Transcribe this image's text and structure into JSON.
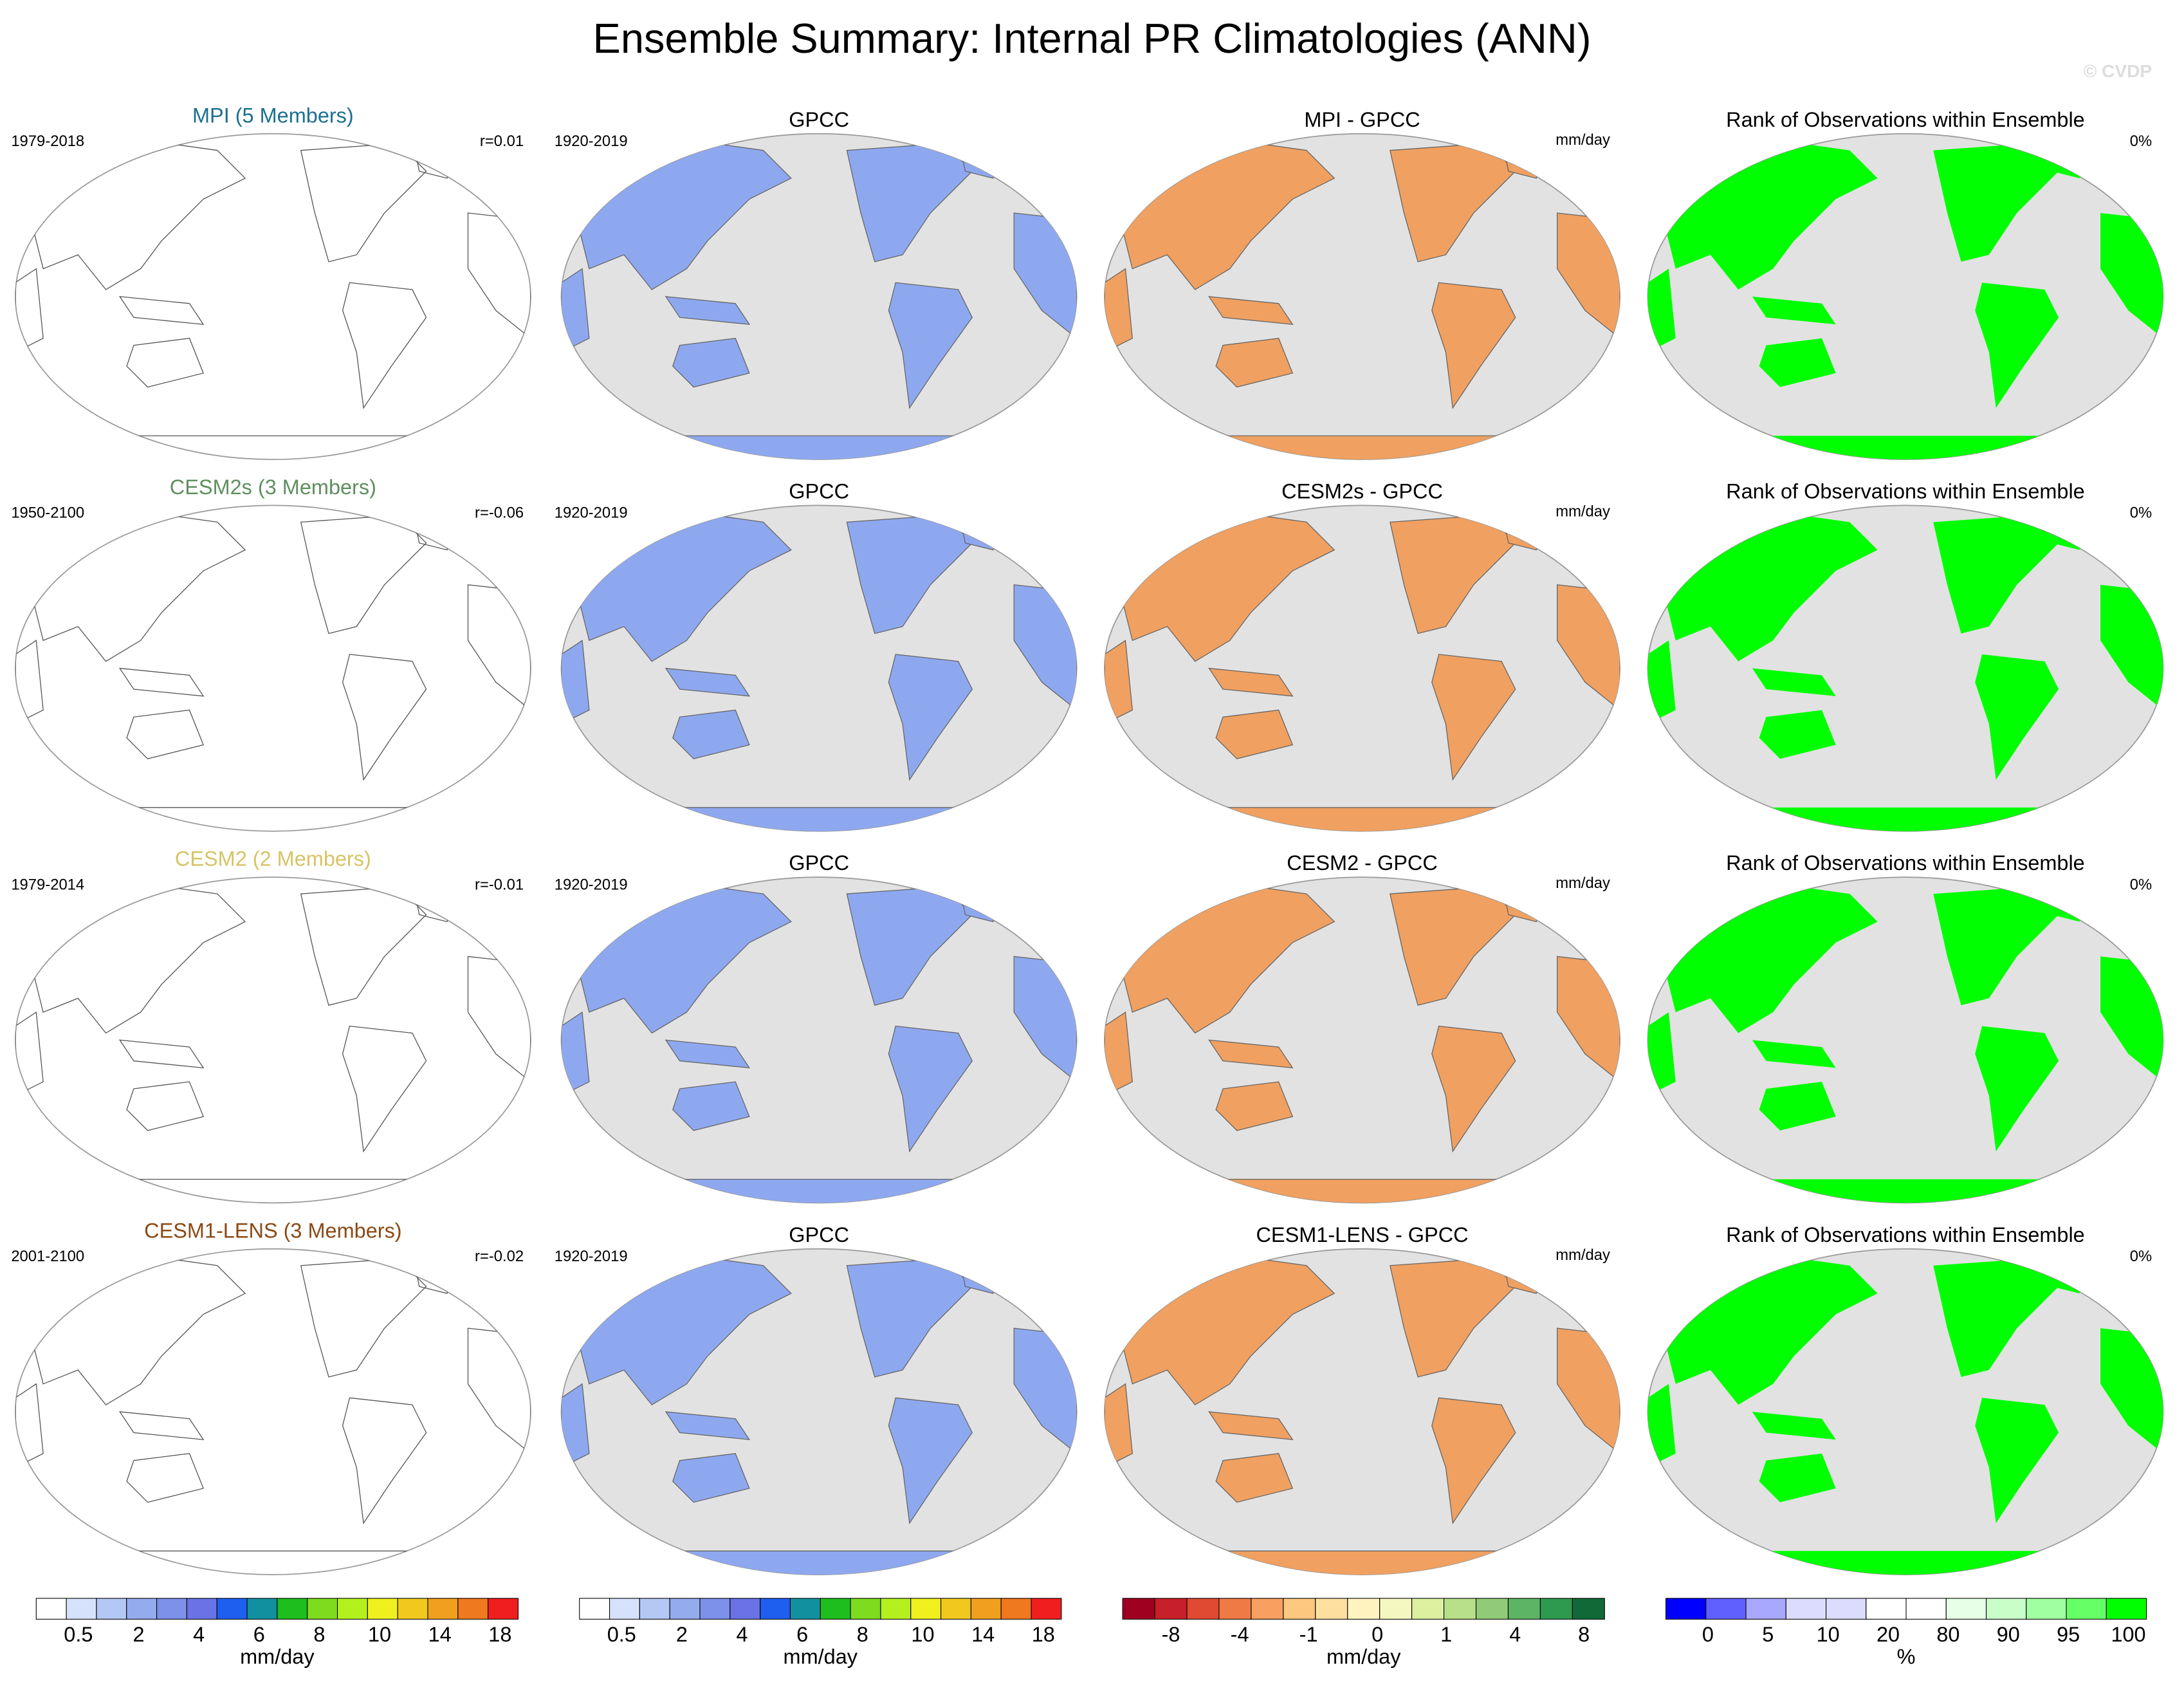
{
  "title": "Ensemble Summary: Internal PR Climatologies (ANN)",
  "watermark": "© CVDP",
  "rows": [
    {
      "model": "MPI (5 Members)",
      "model_color": "#1c6f92",
      "model_period": "1979-2018",
      "r": "r=0.01",
      "obs_title": "GPCC",
      "obs_period": "1920-2019",
      "diff_title": "MPI - GPCC",
      "diff_units": "mm/day",
      "rank_title": "Rank of Observations within Ensemble",
      "rank_pct": "0%"
    },
    {
      "model": "CESM2s (3 Members)",
      "model_color": "#5f8f5f",
      "model_period": "1950-2100",
      "r": "r=-0.06",
      "obs_title": "GPCC",
      "obs_period": "1920-2019",
      "diff_title": "CESM2s - GPCC",
      "diff_units": "mm/day",
      "rank_title": "Rank of Observations within Ensemble",
      "rank_pct": "0%"
    },
    {
      "model": "CESM2 (2 Members)",
      "model_color": "#d6c466",
      "model_period": "1979-2014",
      "r": "r=-0.01",
      "obs_title": "GPCC",
      "obs_period": "1920-2019",
      "diff_title": "CESM2 - GPCC",
      "diff_units": "mm/day",
      "rank_title": "Rank of Observations within Ensemble",
      "rank_pct": "0%"
    },
    {
      "model": "CESM1-LENS (3 Members)",
      "model_color": "#8b4a16",
      "model_period": "2001-2100",
      "r": "r=-0.02",
      "obs_title": "GPCC",
      "obs_period": "1920-2019",
      "diff_title": "CESM1-LENS - GPCC",
      "diff_units": "mm/day",
      "rank_title": "Rank of Observations within Ensemble",
      "rank_pct": "0%"
    }
  ],
  "colorbars": [
    {
      "colors": [
        "#ffffff",
        "#d6e2fb",
        "#b4c8f5",
        "#94acee",
        "#7d90ea",
        "#6a73e6",
        "#1e5ff0",
        "#1191a0",
        "#1ebe1e",
        "#7ddc1e",
        "#b4f01e",
        "#f0f01e",
        "#f0c81e",
        "#f0a01e",
        "#f0781e",
        "#f01e1e"
      ],
      "labels": [
        "0.5",
        "2",
        "4",
        "6",
        "8",
        "10",
        "14",
        "18"
      ],
      "units": "mm/day"
    },
    {
      "colors": [
        "#ffffff",
        "#d6e2fb",
        "#b4c8f5",
        "#94acee",
        "#7d90ea",
        "#6a73e6",
        "#1e5ff0",
        "#1191a0",
        "#1ebe1e",
        "#7ddc1e",
        "#b4f01e",
        "#f0f01e",
        "#f0c81e",
        "#f0a01e",
        "#f0781e",
        "#f01e1e"
      ],
      "labels": [
        "0.5",
        "2",
        "4",
        "6",
        "8",
        "10",
        "14",
        "18"
      ],
      "units": "mm/day"
    },
    {
      "colors": [
        "#a00020",
        "#c8202a",
        "#e04a32",
        "#f07a46",
        "#f8a060",
        "#fcc880",
        "#fde0a0",
        "#fff4c0",
        "#f4f8c0",
        "#dcf0a0",
        "#b8e08a",
        "#90cc78",
        "#5cb464",
        "#2e9a50",
        "#106a38"
      ],
      "labels": [
        "-8",
        "-4",
        "-1",
        "0",
        "1",
        "4",
        "8"
      ],
      "units": "mm/day"
    },
    {
      "colors": [
        "#0000ff",
        "#6060ff",
        "#a8a8ff",
        "#dcdcff",
        "#dcdcff",
        "#ffffff",
        "#ffffff",
        "#e6ffe6",
        "#c8ffc8",
        "#a0ffa0",
        "#66ff66",
        "#00ff00"
      ],
      "labels": [
        "0",
        "5",
        "10",
        "20",
        "80",
        "90",
        "95",
        "100"
      ],
      "units": "%"
    }
  ]
}
